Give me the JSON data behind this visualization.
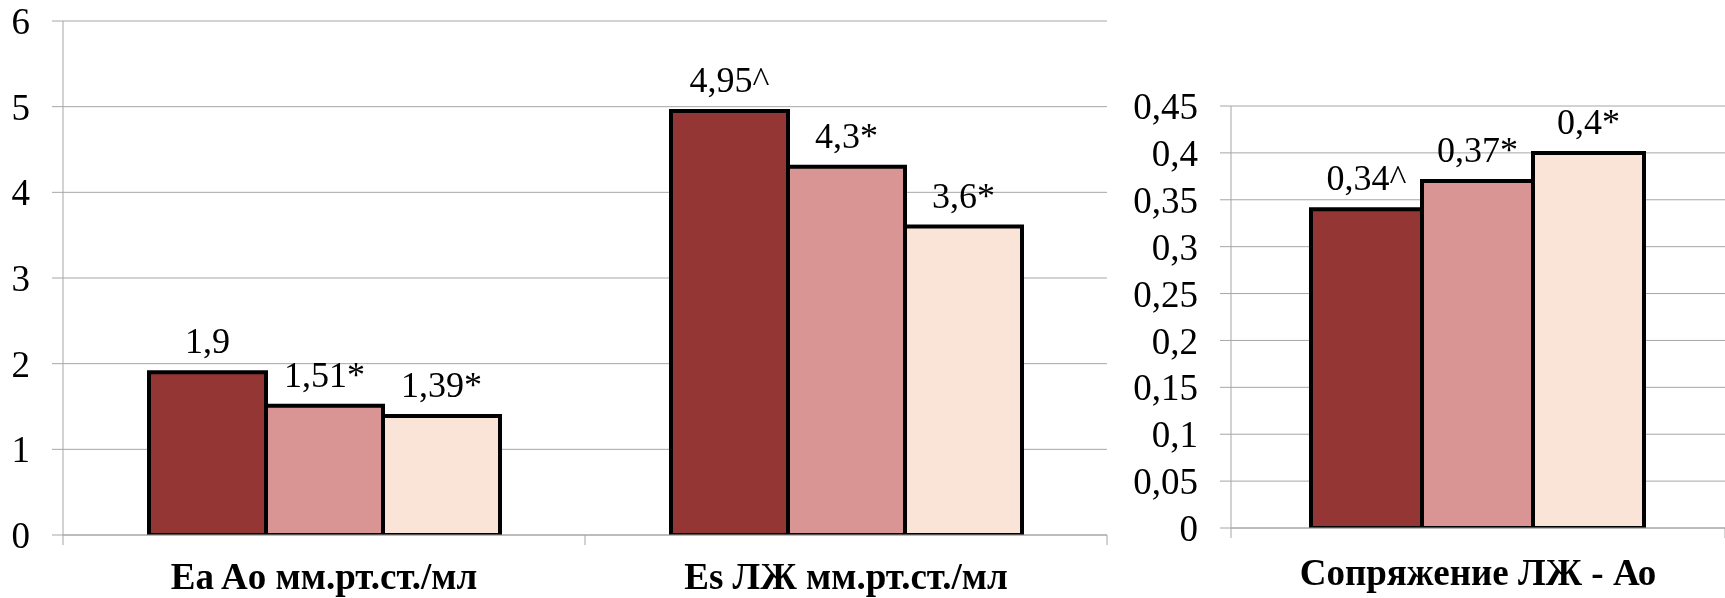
{
  "chart_data": [
    {
      "type": "bar",
      "categories": [
        "Ea Ao мм.рт.ст./мл",
        "Es ЛЖ мм.рт.ст./мл"
      ],
      "series": [
        {
          "color": "#943634",
          "values": [
            1.9,
            4.95
          ],
          "value_labels": [
            "1,9",
            "4,95^"
          ]
        },
        {
          "color": "#d99594",
          "values": [
            1.51,
            4.3
          ],
          "value_labels": [
            "1,51*",
            "4,3*"
          ]
        },
        {
          "color": "#fae4d7",
          "values": [
            1.39,
            3.6
          ],
          "value_labels": [
            "1,39*",
            "3,6*"
          ]
        }
      ],
      "ylim": [
        0,
        6
      ],
      "yticks": [
        0,
        1,
        2,
        3,
        4,
        5,
        6
      ],
      "grid": "y"
    },
    {
      "type": "bar",
      "categories": [
        "Сопряжение ЛЖ - Ао"
      ],
      "series": [
        {
          "color": "#943634",
          "values": [
            0.34
          ],
          "value_labels": [
            "0,34^"
          ]
        },
        {
          "color": "#d99594",
          "values": [
            0.37
          ],
          "value_labels": [
            "0,37*"
          ]
        },
        {
          "color": "#fae4d7",
          "values": [
            0.4
          ],
          "value_labels": [
            "0,4*"
          ]
        }
      ],
      "ylim": [
        0,
        0.45
      ],
      "yticks": [
        0,
        {
          "value": 0.05,
          "label": "0,05"
        },
        {
          "value": 0.1,
          "label": "0,1"
        },
        {
          "value": 0.15,
          "label": "0,15"
        },
        {
          "value": 0.2,
          "label": "0,2"
        },
        {
          "value": 0.25,
          "label": "0,25"
        },
        {
          "value": 0.3,
          "label": "0,3"
        },
        {
          "value": 0.35,
          "label": "0,35"
        },
        {
          "value": 0.4,
          "label": "0,4"
        },
        {
          "value": 0.45,
          "label": "0,45"
        }
      ],
      "grid": "y"
    }
  ]
}
